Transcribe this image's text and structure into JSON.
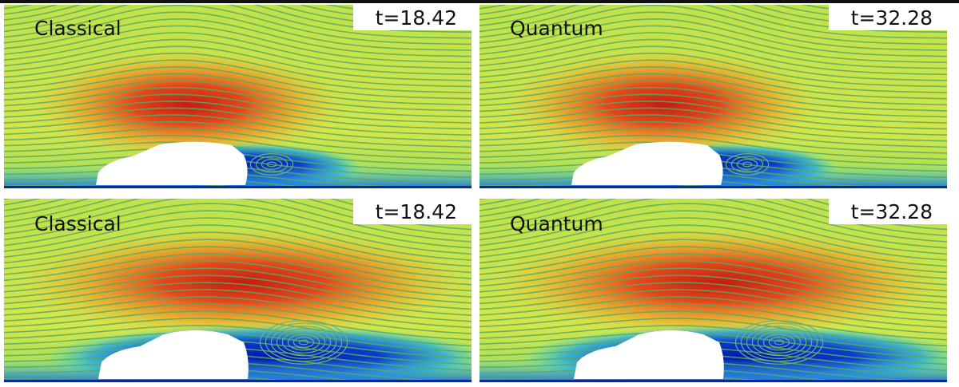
{
  "panels": [
    {
      "label": "Classical",
      "time": "t=18.42"
    },
    {
      "label": "Quantum",
      "time": "t=32.28"
    },
    {
      "label": "Classical",
      "time": "t=18.42"
    },
    {
      "label": "Quantum",
      "time": "t=32.28"
    }
  ]
}
